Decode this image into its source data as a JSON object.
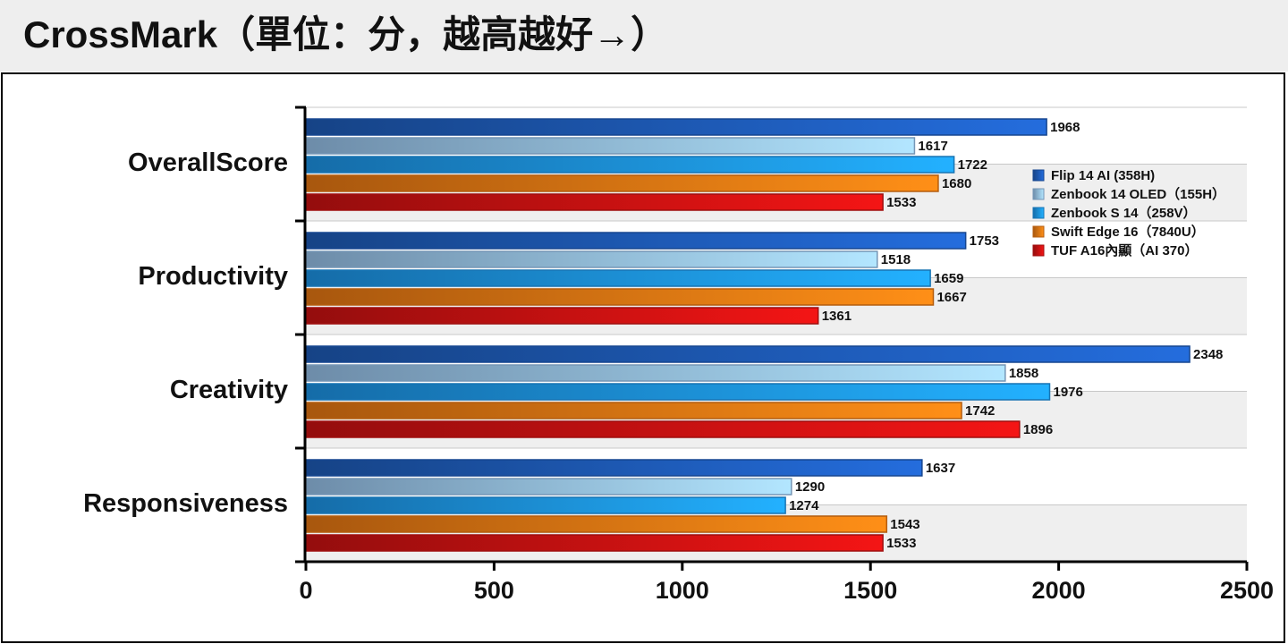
{
  "chart_data": {
    "type": "barh",
    "title": "CrossMark（單位：分，越高越好→）",
    "categories": [
      "OverallScore",
      "Productivity",
      "Creativity",
      "Responsiveness"
    ],
    "series": [
      {
        "name": "Flip 14 AI (358H)",
        "color": "#1f5fc0",
        "values": [
          1968,
          1753,
          2348,
          1637
        ]
      },
      {
        "name": "Zenbook 14 OLED（155H）",
        "color": "#9cc8f2",
        "values": [
          1617,
          1518,
          1858,
          1290
        ]
      },
      {
        "name": "Zenbook S 14（258V）",
        "color": "#1e9af0",
        "values": [
          1722,
          1659,
          1976,
          1274
        ]
      },
      {
        "name": "Swift Edge 16（7840U）",
        "color": "#f07c14",
        "values": [
          1680,
          1667,
          1742,
          1543
        ]
      },
      {
        "name": "TUF A16內顯（AI 370）",
        "color": "#d41212",
        "values": [
          1533,
          1361,
          1896,
          1533
        ]
      }
    ],
    "xlim": [
      0,
      2500
    ],
    "xticks": [
      0,
      500,
      1000,
      1500,
      2000,
      2500
    ],
    "legend": "upper right"
  }
}
